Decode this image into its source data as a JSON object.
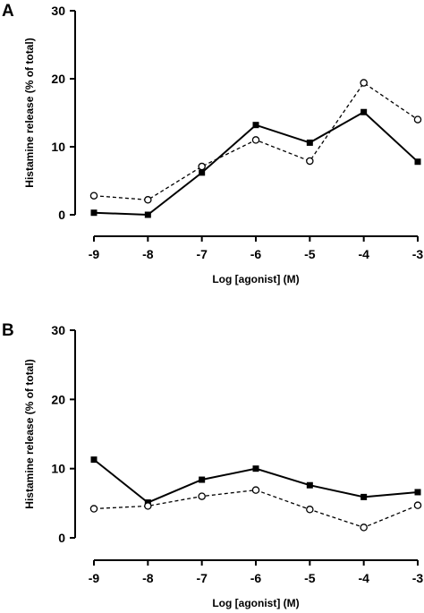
{
  "chart_data": [
    {
      "panel_label": "A",
      "type": "line",
      "x": [
        -9,
        -8,
        -7,
        -6,
        -5,
        -4,
        -3
      ],
      "x_ticks": [
        "-9",
        "-8",
        "-7",
        "-6",
        "-5",
        "-4",
        "-3"
      ],
      "y_ticks": [
        "0",
        "10",
        "20",
        "30"
      ],
      "xlabel": "Log [agonist] (M)",
      "ylabel": "Histamine release (% of total)",
      "xlim": [
        -9,
        -3
      ],
      "ylim": [
        0,
        30
      ],
      "grid": false,
      "series": [
        {
          "marker": "filled-square",
          "line": "solid",
          "values": [
            0.3,
            0.0,
            6.2,
            13.2,
            10.6,
            15.1,
            7.8
          ]
        },
        {
          "marker": "open-circle",
          "line": "dashed",
          "values": [
            2.8,
            2.2,
            7.1,
            11.0,
            7.9,
            19.4,
            14.0
          ]
        }
      ]
    },
    {
      "panel_label": "B",
      "type": "line",
      "x": [
        -9,
        -8,
        -7,
        -6,
        -5,
        -4,
        -3
      ],
      "x_ticks": [
        "-9",
        "-8",
        "-7",
        "-6",
        "-5",
        "-4",
        "-3"
      ],
      "y_ticks": [
        "0",
        "10",
        "20",
        "30"
      ],
      "xlabel": "Log [agonist] (M)",
      "ylabel": "Histamine release (% of total)",
      "xlim": [
        -9,
        -3
      ],
      "ylim": [
        0,
        30
      ],
      "grid": false,
      "series": [
        {
          "marker": "filled-square",
          "line": "solid",
          "values": [
            11.3,
            5.1,
            8.4,
            10.0,
            7.6,
            5.9,
            6.6
          ]
        },
        {
          "marker": "open-circle",
          "line": "dashed",
          "values": [
            4.2,
            4.6,
            6.0,
            6.9,
            4.1,
            1.5,
            4.7
          ]
        }
      ]
    }
  ]
}
